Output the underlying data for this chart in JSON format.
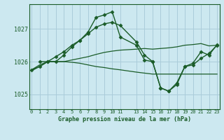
{
  "title": "Graphe pression niveau de la mer (hPa)",
  "bg_color": "#cce8f0",
  "grid_color": "#aaccda",
  "line_color": "#1a5c28",
  "yticks": [
    1025,
    1026,
    1027
  ],
  "ylim": [
    1024.55,
    1027.75
  ],
  "xticks": [
    0,
    1,
    2,
    3,
    4,
    5,
    6,
    7,
    8,
    9,
    10,
    11,
    13,
    14,
    15,
    16,
    17,
    18,
    19,
    20,
    21,
    22,
    23
  ],
  "xlim": [
    -0.3,
    23.3
  ],
  "lines": [
    {
      "x": [
        0,
        1,
        2,
        3,
        4,
        5,
        6,
        7,
        8,
        9,
        10,
        11,
        13,
        14,
        15,
        16,
        17,
        18,
        19,
        20,
        21,
        22,
        23
      ],
      "y": [
        1025.75,
        1025.85,
        1026.0,
        1026.0,
        1026.2,
        1026.45,
        1026.65,
        1026.9,
        1027.35,
        1027.42,
        1027.52,
        1026.75,
        1026.5,
        1026.05,
        1026.0,
        1025.2,
        1025.1,
        1025.3,
        1025.85,
        1025.95,
        1026.3,
        1026.2,
        1026.52
      ],
      "marker": "D",
      "markersize": 2.5,
      "linewidth": 1.0
    },
    {
      "x": [
        0,
        1,
        2,
        3,
        4,
        5,
        6,
        7,
        8,
        9,
        10,
        11,
        13,
        14,
        15,
        16,
        17,
        18,
        19,
        20,
        21,
        22,
        23
      ],
      "y": [
        1025.75,
        1025.9,
        1026.0,
        1026.0,
        1026.0,
        1026.05,
        1026.1,
        1026.15,
        1026.22,
        1026.28,
        1026.32,
        1026.35,
        1026.38,
        1026.4,
        1026.38,
        1026.4,
        1026.42,
        1026.45,
        1026.5,
        1026.52,
        1026.55,
        1026.48,
        1026.5
      ],
      "marker": null,
      "markersize": 0,
      "linewidth": 0.9
    },
    {
      "x": [
        0,
        1,
        2,
        3,
        4,
        5,
        6,
        7,
        8,
        9,
        10,
        11,
        13,
        14,
        15,
        16,
        17,
        18,
        19,
        20,
        21,
        22,
        23
      ],
      "y": [
        1025.72,
        1025.85,
        1026.0,
        1026.0,
        1026.0,
        1025.98,
        1025.95,
        1025.9,
        1025.85,
        1025.82,
        1025.78,
        1025.75,
        1025.68,
        1025.65,
        1025.62,
        1025.62,
        1025.62,
        1025.62,
        1025.62,
        1025.62,
        1025.62,
        1025.62,
        1025.62
      ],
      "marker": null,
      "markersize": 0,
      "linewidth": 0.9
    },
    {
      "x": [
        1,
        2,
        3,
        4,
        5,
        6,
        7,
        8,
        9,
        10,
        11,
        13,
        14,
        15,
        16,
        17,
        18,
        19,
        20,
        21,
        22,
        23
      ],
      "y": [
        1026.0,
        1026.0,
        1026.15,
        1026.3,
        1026.5,
        1026.65,
        1026.85,
        1027.05,
        1027.15,
        1027.2,
        1027.1,
        1026.6,
        1026.2,
        1026.0,
        1025.2,
        1025.1,
        1025.35,
        1025.85,
        1025.9,
        1026.1,
        1026.25,
        1026.5
      ],
      "marker": "D",
      "markersize": 2.5,
      "linewidth": 1.0
    }
  ]
}
